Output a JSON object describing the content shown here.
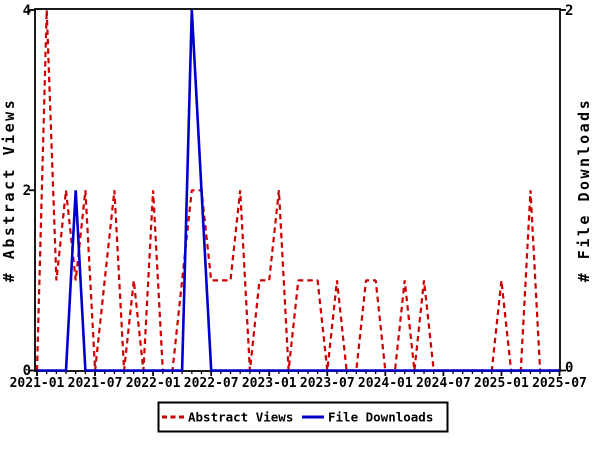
{
  "chart_data": {
    "type": "line",
    "title": "",
    "x": [
      "2021-01",
      "2021-02",
      "2021-03",
      "2021-04",
      "2021-05",
      "2021-06",
      "2021-07",
      "2021-08",
      "2021-09",
      "2021-10",
      "2021-11",
      "2021-12",
      "2022-01",
      "2022-02",
      "2022-03",
      "2022-04",
      "2022-05",
      "2022-06",
      "2022-07",
      "2022-08",
      "2022-09",
      "2022-10",
      "2022-11",
      "2022-12",
      "2023-01",
      "2023-02",
      "2023-03",
      "2023-04",
      "2023-05",
      "2023-06",
      "2023-07",
      "2023-08",
      "2023-09",
      "2023-10",
      "2023-11",
      "2023-12",
      "2024-01",
      "2024-02",
      "2024-03",
      "2024-04",
      "2024-05",
      "2024-06",
      "2024-07",
      "2024-08",
      "2024-09",
      "2024-10",
      "2024-11",
      "2024-12",
      "2025-01",
      "2025-02",
      "2025-03",
      "2025-04",
      "2025-05",
      "2025-06",
      "2025-07"
    ],
    "x_tick_labels": [
      "2021-01",
      "2021-07",
      "2022-01",
      "2022-07",
      "2023-01",
      "2023-07",
      "2024-01",
      "2024-07",
      "2025-01",
      "2025-07"
    ],
    "series": [
      {
        "name": "Abstract Views",
        "axis": "left",
        "color": "#cc0000",
        "style": "dashed",
        "values": [
          0,
          4,
          1,
          2,
          1,
          2,
          0,
          1,
          2,
          0,
          1,
          0,
          2,
          0,
          0,
          1,
          2,
          2,
          1,
          1,
          1,
          2,
          0,
          1,
          1,
          2,
          0,
          1,
          1,
          1,
          0,
          1,
          0,
          0,
          1,
          1,
          0,
          0,
          1,
          0,
          1,
          0,
          0,
          0,
          0,
          0,
          0,
          0,
          1,
          0,
          0,
          2,
          0,
          0,
          0
        ]
      },
      {
        "name": "File Downloads",
        "axis": "right",
        "color": "#0000cc",
        "style": "solid",
        "values": [
          0,
          0,
          0,
          0,
          1,
          0,
          0,
          0,
          0,
          0,
          0,
          0,
          0,
          0,
          0,
          0,
          2,
          1,
          0,
          0,
          0,
          0,
          0,
          0,
          0,
          0,
          0,
          0,
          0,
          0,
          0,
          0,
          0,
          0,
          0,
          0,
          0,
          0,
          0,
          0,
          0,
          0,
          0,
          0,
          0,
          0,
          0,
          0,
          0,
          0,
          0,
          0,
          0,
          0,
          0
        ]
      }
    ],
    "left_axis": {
      "label": "# Abstract Views",
      "range": [
        0,
        4
      ],
      "ticks": [
        {
          "label": "4",
          "value": 4
        },
        {
          "label": "2",
          "value": 2
        },
        {
          "label": "0",
          "value": 0
        }
      ]
    },
    "right_axis": {
      "label": "# File Downloads",
      "range": [
        0,
        2
      ],
      "ticks": [
        {
          "label": "2",
          "value": 2
        },
        {
          "label": "0",
          "value": 0
        }
      ]
    },
    "legend": {
      "position": "bottom-center",
      "entries": [
        {
          "label": "Abstract Views",
          "color": "#cc0000",
          "style": "dashed"
        },
        {
          "label": "File Downloads",
          "color": "#0000cc",
          "style": "solid"
        }
      ]
    },
    "colors": {
      "background": "#ffffff",
      "frame": "#000000",
      "abstract_views": "#cc0000",
      "file_downloads": "#0000cc"
    },
    "grid": false
  }
}
